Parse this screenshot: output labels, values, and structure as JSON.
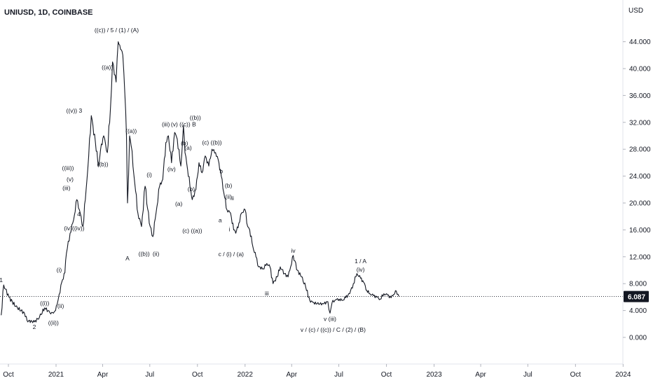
{
  "header": {
    "symbol": "UNIUSD, 1D, COINBASE"
  },
  "axis": {
    "unit": "USD"
  },
  "chart_data": {
    "type": "line",
    "title": "UNIUSD, 1D, COINBASE",
    "ylabel": "USD",
    "ylim": [
      -4,
      48
    ],
    "ytick_labels": [
      "0.000",
      "4.000",
      "8.000",
      "12.000",
      "16.000",
      "20.000",
      "24.000",
      "28.000",
      "32.000",
      "36.000",
      "40.000",
      "44.000"
    ],
    "yticks": [
      0,
      4,
      8,
      12,
      16,
      20,
      24,
      28,
      32,
      36,
      40,
      44
    ],
    "xtick_labels": [
      "Oct",
      "2021",
      "Apr",
      "Jul",
      "Oct",
      "2022",
      "Apr",
      "Jul",
      "Oct",
      "2023",
      "Apr",
      "Jul",
      "Oct",
      "2024"
    ],
    "xticks": [
      "2020-10-01",
      "2021-01-01",
      "2021-04-01",
      "2021-07-01",
      "2021-10-01",
      "2022-01-01",
      "2022-04-01",
      "2022-07-01",
      "2022-10-01",
      "2023-01-01",
      "2023-04-01",
      "2023-07-01",
      "2023-10-01",
      "2024-01-01"
    ],
    "last_price": "6.087",
    "last_value": 6.087,
    "series": [
      {
        "color": "#131722",
        "x": [
          "2020-09-17",
          "2020-09-22",
          "2020-10-02",
          "2020-10-15",
          "2020-11-01",
          "2020-11-06",
          "2020-11-20",
          "2020-11-30",
          "2020-12-10",
          "2020-12-20",
          "2020-12-27",
          "2020-12-31",
          "2021-01-03",
          "2021-01-07",
          "2021-01-12",
          "2021-01-18",
          "2021-01-21",
          "2021-01-28",
          "2021-02-04",
          "2021-02-10",
          "2021-02-15",
          "2021-02-22",
          "2021-02-28",
          "2021-03-05",
          "2021-03-10",
          "2021-03-18",
          "2021-03-24",
          "2021-03-28",
          "2021-04-03",
          "2021-04-10",
          "2021-04-16",
          "2021-04-20",
          "2021-04-27",
          "2021-05-01",
          "2021-05-04",
          "2021-05-10",
          "2021-05-14",
          "2021-05-17",
          "2021-05-19",
          "2021-05-23",
          "2021-05-26",
          "2021-06-02",
          "2021-06-08",
          "2021-06-15",
          "2021-06-22",
          "2021-06-30",
          "2021-07-07",
          "2021-07-13",
          "2021-07-20",
          "2021-07-26",
          "2021-08-01",
          "2021-08-06",
          "2021-08-12",
          "2021-08-18",
          "2021-08-23",
          "2021-08-30",
          "2021-09-04",
          "2021-09-07",
          "2021-09-12",
          "2021-09-18",
          "2021-09-21",
          "2021-09-28",
          "2021-10-04",
          "2021-10-10",
          "2021-10-16",
          "2021-10-23",
          "2021-10-29",
          "2021-11-05",
          "2021-11-10",
          "2021-11-16",
          "2021-11-21",
          "2021-11-27",
          "2021-12-04",
          "2021-12-10",
          "2021-12-14",
          "2021-12-20",
          "2021-12-25",
          "2022-01-01",
          "2022-01-06",
          "2022-01-10",
          "2022-01-16",
          "2022-01-22",
          "2022-01-27",
          "2022-02-05",
          "2022-02-12",
          "2022-02-18",
          "2022-02-24",
          "2022-03-04",
          "2022-03-10",
          "2022-03-18",
          "2022-03-25",
          "2022-03-30",
          "2022-04-04",
          "2022-04-12",
          "2022-04-20",
          "2022-04-28",
          "2022-05-06",
          "2022-05-12",
          "2022-05-20",
          "2022-06-01",
          "2022-06-10",
          "2022-06-14",
          "2022-06-18",
          "2022-06-25",
          "2022-07-02",
          "2022-07-08",
          "2022-07-14",
          "2022-07-22",
          "2022-07-29",
          "2022-08-05",
          "2022-08-12",
          "2022-08-18",
          "2022-08-24",
          "2022-08-30",
          "2022-09-06",
          "2022-09-12",
          "2022-09-19",
          "2022-09-26",
          "2022-10-03",
          "2022-10-10",
          "2022-10-15",
          "2022-10-20",
          "2022-10-25"
        ],
        "values": [
          3.3,
          7.8,
          6.0,
          4.6,
          3.6,
          2.5,
          2.3,
          3.0,
          4.4,
          3.7,
          3.6,
          4.0,
          4.9,
          6.4,
          8.2,
          9.6,
          12.5,
          15.5,
          17.5,
          20.5,
          19.0,
          16.5,
          22.0,
          27.0,
          33.0,
          29.0,
          25.5,
          28.0,
          30.0,
          27.5,
          34.0,
          41.0,
          38.0,
          44.0,
          43.5,
          42.0,
          36.0,
          30.0,
          20.0,
          30.0,
          28.5,
          23.0,
          18.5,
          16.5,
          22.5,
          17.0,
          15.0,
          18.5,
          22.5,
          23.5,
          29.0,
          30.0,
          26.0,
          30.5,
          29.5,
          25.5,
          31.5,
          27.5,
          25.0,
          22.0,
          20.5,
          22.0,
          26.0,
          24.5,
          27.0,
          25.5,
          28.0,
          27.5,
          26.5,
          24.0,
          21.5,
          19.0,
          18.5,
          16.0,
          15.5,
          17.0,
          18.5,
          19.0,
          16.5,
          16.0,
          13.5,
          12.0,
          10.5,
          10.2,
          11.0,
          10.5,
          8.0,
          9.0,
          10.5,
          9.5,
          9.0,
          10.5,
          12.2,
          10.0,
          9.0,
          7.5,
          5.5,
          5.2,
          5.0,
          5.0,
          5.3,
          3.6,
          5.2,
          5.6,
          5.7,
          5.5,
          5.9,
          6.5,
          8.0,
          9.5,
          8.8,
          8.2,
          7.0,
          6.5,
          6.2,
          6.0,
          5.7,
          6.5,
          6.3,
          5.9,
          6.4,
          6.9,
          6.1
        ]
      }
    ],
    "annotations": [
      {
        "text": "1",
        "x": "2020-09-17",
        "y": 7.8,
        "pos": "above"
      },
      {
        "text": "2",
        "x": "2020-11-20",
        "y": 2.3,
        "pos": "below"
      },
      {
        "text": "((i))",
        "x": "2020-12-10",
        "y": 4.4,
        "pos": "above"
      },
      {
        "text": "((ii))",
        "x": "2020-12-27",
        "y": 2.9,
        "pos": "below"
      },
      {
        "text": "(i)",
        "x": "2021-01-07",
        "y": 9.3,
        "pos": "above"
      },
      {
        "text": "(ii)",
        "x": "2021-01-10",
        "y": 5.4,
        "pos": "below"
      },
      {
        "text": "(iii)",
        "x": "2021-01-21",
        "y": 21.5,
        "pos": "above"
      },
      {
        "text": "((iii))",
        "x": "2021-01-24",
        "y": 24.5,
        "pos": "above"
      },
      {
        "text": "(v)",
        "x": "2021-01-28",
        "y": 22.8,
        "pos": "above"
      },
      {
        "text": "(iv)((iv))",
        "x": "2021-02-05",
        "y": 17.0,
        "pos": "below"
      },
      {
        "text": "4",
        "x": "2021-02-14",
        "y": 17.6,
        "pos": "above"
      },
      {
        "text": "((v)) 3",
        "x": "2021-02-05",
        "y": 33.0,
        "pos": "above"
      },
      {
        "text": "((b))",
        "x": "2021-04-01",
        "y": 26.5,
        "pos": "below"
      },
      {
        "text": "((a))",
        "x": "2021-04-10",
        "y": 39.5,
        "pos": "above"
      },
      {
        "text": "((c)) / 5 / (1) / (A)",
        "x": "2021-04-28",
        "y": 45.0,
        "pos": "above"
      },
      {
        "text": "((a))",
        "x": "2021-05-26",
        "y": 30.0,
        "pos": "above"
      },
      {
        "text": "A",
        "x": "2021-05-19",
        "y": 12.5,
        "pos": "below"
      },
      {
        "text": "((b))",
        "x": "2021-06-20",
        "y": 13.2,
        "pos": "below"
      },
      {
        "text": "(i)",
        "x": "2021-06-30",
        "y": 23.5,
        "pos": "above"
      },
      {
        "text": "(ii)",
        "x": "2021-07-13",
        "y": 13.2,
        "pos": "below"
      },
      {
        "text": "(iii)",
        "x": "2021-08-01",
        "y": 31.0,
        "pos": "above"
      },
      {
        "text": "(iv)",
        "x": "2021-08-12",
        "y": 25.8,
        "pos": "below"
      },
      {
        "text": "(v) ((c)) B",
        "x": "2021-09-04",
        "y": 31.0,
        "pos": "above"
      },
      {
        "text": "((b))",
        "x": "2021-09-27",
        "y": 32.0,
        "pos": "above"
      },
      {
        "text": "(b)",
        "x": "2021-09-06",
        "y": 28.2,
        "pos": "above"
      },
      {
        "text": "(a)",
        "x": "2021-09-13",
        "y": 27.5,
        "pos": "above"
      },
      {
        "text": "(a)",
        "x": "2021-08-26",
        "y": 20.6,
        "pos": "below"
      },
      {
        "text": "(b)",
        "x": "2021-09-19",
        "y": 22.8,
        "pos": "below"
      },
      {
        "text": "(c) ((a))",
        "x": "2021-09-21",
        "y": 16.6,
        "pos": "below"
      },
      {
        "text": "(c) ((b))",
        "x": "2021-10-29",
        "y": 28.3,
        "pos": "above"
      },
      {
        "text": "b",
        "x": "2021-11-16",
        "y": 24.0,
        "pos": "above"
      },
      {
        "text": "a",
        "x": "2021-11-14",
        "y": 18.2,
        "pos": "below"
      },
      {
        "text": "(b)",
        "x": "2021-11-30",
        "y": 21.9,
        "pos": "above"
      },
      {
        "text": "(ii)",
        "x": "2021-11-30",
        "y": 20.2,
        "pos": "above"
      },
      {
        "text": "ii",
        "x": "2021-12-08",
        "y": 20.0,
        "pos": "above"
      },
      {
        "text": "i",
        "x": "2021-12-02",
        "y": 16.8,
        "pos": "below"
      },
      {
        "text": "c / (i) / (a)",
        "x": "2021-12-05",
        "y": 13.1,
        "pos": "below"
      },
      {
        "text": "iii",
        "x": "2022-02-12",
        "y": 7.3,
        "pos": "below"
      },
      {
        "text": "iv",
        "x": "2022-04-04",
        "y": 12.2,
        "pos": "above"
      },
      {
        "text": "1 / A",
        "x": "2022-08-12",
        "y": 10.6,
        "pos": "above"
      },
      {
        "text": "(iv)",
        "x": "2022-08-12",
        "y": 9.4,
        "pos": "above"
      },
      {
        "text": "v (iii)",
        "x": "2022-06-14",
        "y": 3.5,
        "pos": "below"
      },
      {
        "text": "v / (c) / ((c)) / C / (2) / (B)",
        "x": "2022-06-20",
        "y": 1.9,
        "pos": "below"
      }
    ]
  }
}
